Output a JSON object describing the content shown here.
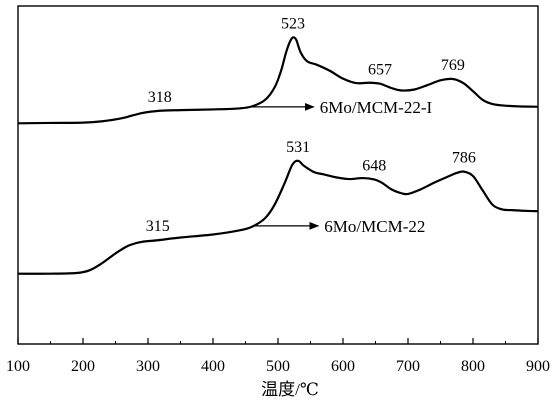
{
  "chart_data": {
    "type": "line",
    "title": "",
    "xlabel": "温度/℃",
    "ylabel": "",
    "xlim": [
      100,
      900
    ],
    "ylim": [
      0,
      1
    ],
    "xticks": [
      "100",
      "200",
      "300",
      "400",
      "500",
      "600",
      "700",
      "800",
      "900"
    ],
    "grid": false,
    "legend": "none",
    "line_color": "#000000",
    "series": [
      {
        "name": "6Mo/MCM-22-I",
        "points": [
          [
            100,
            0.653
          ],
          [
            150,
            0.654
          ],
          [
            200,
            0.655
          ],
          [
            230,
            0.659
          ],
          [
            260,
            0.668
          ],
          [
            290,
            0.683
          ],
          [
            318,
            0.69
          ],
          [
            350,
            0.692
          ],
          [
            400,
            0.694
          ],
          [
            440,
            0.697
          ],
          [
            460,
            0.703
          ],
          [
            480,
            0.722
          ],
          [
            495,
            0.76
          ],
          [
            505,
            0.81
          ],
          [
            512,
            0.86
          ],
          [
            518,
            0.893
          ],
          [
            523,
            0.907
          ],
          [
            528,
            0.9
          ],
          [
            535,
            0.862
          ],
          [
            545,
            0.836
          ],
          [
            560,
            0.826
          ],
          [
            580,
            0.808
          ],
          [
            600,
            0.785
          ],
          [
            620,
            0.772
          ],
          [
            640,
            0.773
          ],
          [
            657,
            0.77
          ],
          [
            675,
            0.757
          ],
          [
            690,
            0.75
          ],
          [
            710,
            0.753
          ],
          [
            730,
            0.766
          ],
          [
            750,
            0.78
          ],
          [
            769,
            0.784
          ],
          [
            785,
            0.772
          ],
          [
            800,
            0.748
          ],
          [
            815,
            0.722
          ],
          [
            830,
            0.71
          ],
          [
            850,
            0.705
          ],
          [
            870,
            0.703
          ],
          [
            900,
            0.702
          ]
        ]
      },
      {
        "name": "6Mo/MCM-22",
        "points": [
          [
            100,
            0.208
          ],
          [
            150,
            0.208
          ],
          [
            190,
            0.21
          ],
          [
            210,
            0.218
          ],
          [
            230,
            0.24
          ],
          [
            250,
            0.268
          ],
          [
            270,
            0.291
          ],
          [
            290,
            0.302
          ],
          [
            315,
            0.307
          ],
          [
            350,
            0.315
          ],
          [
            400,
            0.324
          ],
          [
            440,
            0.336
          ],
          [
            460,
            0.347
          ],
          [
            480,
            0.372
          ],
          [
            495,
            0.413
          ],
          [
            510,
            0.475
          ],
          [
            522,
            0.53
          ],
          [
            531,
            0.542
          ],
          [
            540,
            0.527
          ],
          [
            555,
            0.509
          ],
          [
            570,
            0.502
          ],
          [
            590,
            0.493
          ],
          [
            610,
            0.488
          ],
          [
            630,
            0.491
          ],
          [
            648,
            0.487
          ],
          [
            660,
            0.477
          ],
          [
            675,
            0.457
          ],
          [
            690,
            0.446
          ],
          [
            700,
            0.444
          ],
          [
            720,
            0.458
          ],
          [
            740,
            0.477
          ],
          [
            760,
            0.494
          ],
          [
            775,
            0.506
          ],
          [
            786,
            0.51
          ],
          [
            800,
            0.497
          ],
          [
            815,
            0.454
          ],
          [
            830,
            0.412
          ],
          [
            845,
            0.398
          ],
          [
            860,
            0.396
          ],
          [
            880,
            0.394
          ],
          [
            900,
            0.393
          ]
        ]
      }
    ],
    "peak_labels": [
      {
        "series": 0,
        "x": 523,
        "text": "523"
      },
      {
        "series": 0,
        "x": 657,
        "text": "657"
      },
      {
        "series": 0,
        "x": 769,
        "text": "769"
      },
      {
        "series": 0,
        "x": 318,
        "text": "318"
      },
      {
        "series": 1,
        "x": 531,
        "text": "531"
      },
      {
        "series": 1,
        "x": 648,
        "text": "648"
      },
      {
        "series": 1,
        "x": 786,
        "text": "786"
      },
      {
        "series": 1,
        "x": 315,
        "text": "315"
      }
    ],
    "arrow_labels": [
      {
        "series": 0,
        "from_x": 455,
        "to_x": 555,
        "text": "6Mo/MCM-22-I"
      },
      {
        "series": 1,
        "from_x": 462,
        "to_x": 562,
        "text": "6Mo/MCM-22"
      }
    ]
  }
}
